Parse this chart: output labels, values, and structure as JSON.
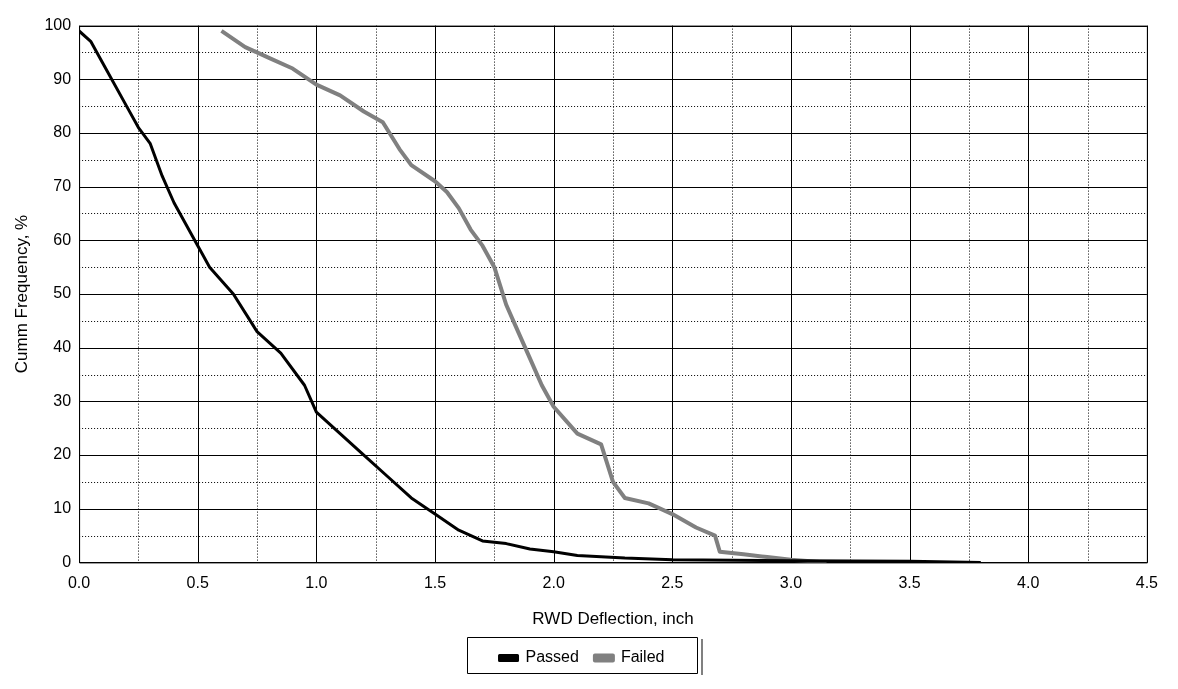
{
  "chart_data": {
    "type": "line",
    "xlabel": "RWD Deflection, inch",
    "ylabel": "Cumm Frequency, %",
    "xlim": [
      0,
      4.5
    ],
    "ylim": [
      0,
      100
    ],
    "xticks": [
      {
        "value": 0,
        "label": "0.0"
      },
      {
        "value": 0.25,
        "label": null
      },
      {
        "value": 0.5,
        "label": "0.5"
      },
      {
        "value": 0.75,
        "label": null
      },
      {
        "value": 1,
        "label": "1.0"
      },
      {
        "value": 1.25,
        "label": null
      },
      {
        "value": 1.5,
        "label": "1.5"
      },
      {
        "value": 1.75,
        "label": null
      },
      {
        "value": 2,
        "label": "2.0"
      },
      {
        "value": 2.25,
        "label": null
      },
      {
        "value": 2.5,
        "label": "2.5"
      },
      {
        "value": 2.75,
        "label": null
      },
      {
        "value": 3,
        "label": "3.0"
      },
      {
        "value": 3.25,
        "label": null
      },
      {
        "value": 3.5,
        "label": "3.5"
      },
      {
        "value": 3.75,
        "label": null
      },
      {
        "value": 4,
        "label": "4.0"
      },
      {
        "value": 4.25,
        "label": null
      },
      {
        "value": 4.5,
        "label": "4.5"
      }
    ],
    "yticks": [
      0,
      {
        "value": 5,
        "label": null
      },
      10,
      {
        "value": 15,
        "label": null
      },
      20,
      {
        "value": 25,
        "label": null
      },
      30,
      {
        "value": 35,
        "label": null
      },
      40,
      {
        "value": 45,
        "label": null
      },
      50,
      {
        "value": 55,
        "label": null
      },
      60,
      {
        "value": 65,
        "label": null
      },
      70,
      {
        "value": 75,
        "label": null
      },
      80,
      {
        "value": 85,
        "label": null
      },
      90,
      {
        "value": 95,
        "label": null
      },
      100
    ],
    "grid": true,
    "legend": "bottom",
    "marker": "none",
    "line_style": "solid",
    "series": [
      {
        "name": "Passed",
        "color": "#000000",
        "x": [
          0,
          0.05,
          0.1,
          0.2,
          0.25,
          0.3,
          0.35,
          0.4,
          0.5,
          0.55,
          0.65,
          0.75,
          0.85,
          0.95,
          1.0,
          1.1,
          1.2,
          1.3,
          1.4,
          1.5,
          1.6,
          1.7,
          1.8,
          1.9,
          2.0,
          2.1,
          2.3,
          2.5,
          3.0,
          3.5,
          3.8
        ],
        "values": [
          99,
          97,
          93,
          85,
          81,
          78,
          72,
          67,
          59,
          55,
          50,
          43,
          39,
          33,
          28,
          24,
          20,
          16,
          12,
          9,
          6,
          4,
          3.5,
          2.5,
          2,
          1.3,
          0.8,
          0.5,
          0.3,
          0.2,
          0
        ]
      },
      {
        "name": "Failed",
        "color": "#808080",
        "x": [
          0.6,
          0.7,
          0.8,
          0.9,
          1.0,
          1.1,
          1.2,
          1.28,
          1.35,
          1.4,
          1.5,
          1.55,
          1.6,
          1.65,
          1.7,
          1.75,
          1.8,
          1.85,
          1.9,
          1.95,
          2.0,
          2.1,
          2.2,
          2.25,
          2.3,
          2.4,
          2.5,
          2.6,
          2.68,
          2.7,
          2.8,
          2.9,
          3.0,
          3.15
        ],
        "values": [
          99,
          96,
          94,
          92,
          89,
          87,
          84,
          82,
          77,
          74,
          71,
          69,
          66,
          62,
          59,
          55,
          48,
          43,
          38,
          33,
          29,
          24,
          22,
          15,
          12,
          11,
          9,
          6.5,
          5,
          2,
          1.5,
          1,
          0.5,
          0
        ]
      }
    ]
  }
}
